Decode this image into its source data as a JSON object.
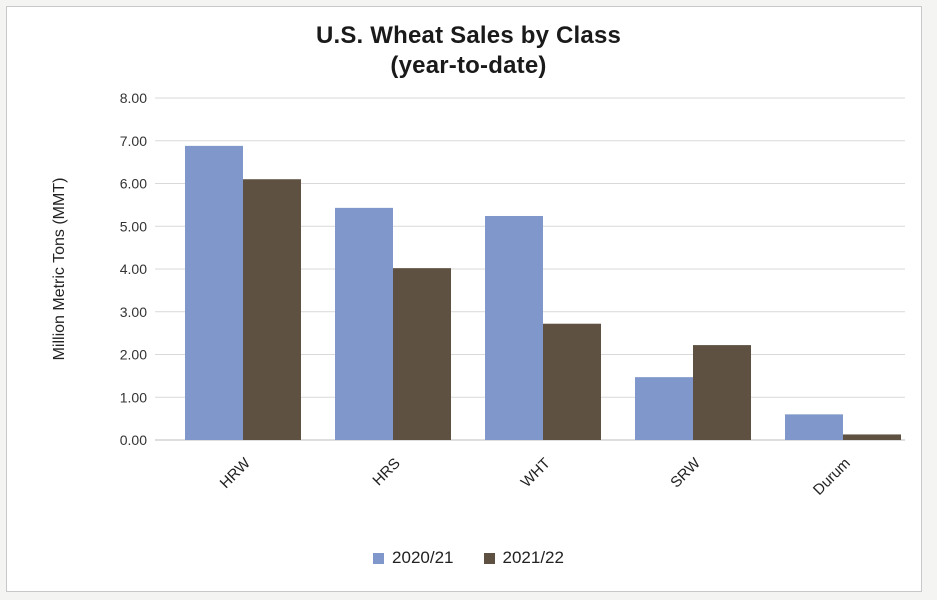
{
  "chart_data": {
    "type": "bar",
    "title": "U.S. Wheat Sales by Class",
    "subtitle": "(year-to-date)",
    "xlabel": "",
    "ylabel": "Million Metric Tons (MMT)",
    "categories": [
      "HRW",
      "HRS",
      "WHT",
      "SRW",
      "Durum"
    ],
    "series": [
      {
        "name": "2020/21",
        "color": "#7f97cb",
        "values": [
          6.88,
          5.43,
          5.24,
          1.47,
          0.6
        ]
      },
      {
        "name": "2021/22",
        "color": "#5f5141",
        "values": [
          6.1,
          4.02,
          2.72,
          2.22,
          0.13
        ]
      }
    ],
    "ylim": [
      0,
      8
    ],
    "yticks": [
      "0.00",
      "1.00",
      "2.00",
      "3.00",
      "4.00",
      "5.00",
      "6.00",
      "7.00",
      "8.00"
    ],
    "grid": true,
    "legend_position": "bottom"
  }
}
